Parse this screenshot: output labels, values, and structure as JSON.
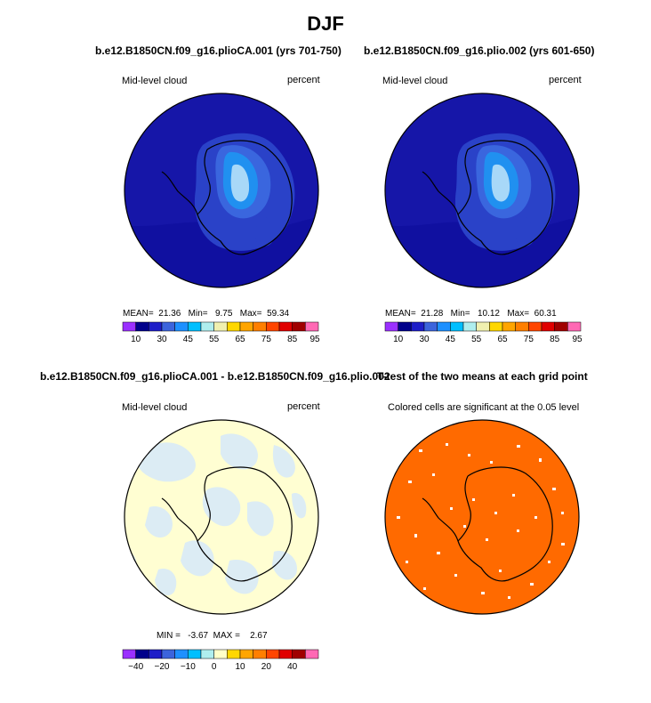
{
  "page_title": "DJF",
  "panels": [
    {
      "title": "b.e12.B1850CN.f09_g16.plioCA.001 (yrs 701-750)",
      "left_label": "Mid-level cloud",
      "right_label": "percent",
      "stats": {
        "mean_label": "MEAN=",
        "mean": "21.36",
        "min_label": "Min=",
        "min": "9.75",
        "max_label": "Max=",
        "max": "59.34"
      }
    },
    {
      "title": "b.e12.B1850CN.f09_g16.plio.002 (yrs 601-650)",
      "left_label": "Mid-level cloud",
      "right_label": "percent",
      "stats": {
        "mean_label": "MEAN=",
        "mean": "21.28",
        "min_label": "Min=",
        "min": "10.12",
        "max_label": "Max=",
        "max": "60.31"
      }
    },
    {
      "title": "b.e12.B1850CN.f09_g16.plioCA.001 - b.e12.B1850CN.f09_g16.plio.002",
      "left_label": "Mid-level cloud",
      "right_label": "percent",
      "stats": {
        "min_label": "MIN =",
        "min": "-3.67",
        "max_label": "MAX =",
        "max": "2.67"
      }
    },
    {
      "title": "T-test of the two means at each grid point",
      "subtitle": "Colored cells are significant at the 0.05 level"
    }
  ],
  "colorbars": {
    "abs": {
      "colors": [
        "#9b30ff",
        "#00008b",
        "#1e1ec8",
        "#3c64dc",
        "#1e90ff",
        "#00bfff",
        "#afeeee",
        "#f0f0b0",
        "#ffd700",
        "#ffa500",
        "#ff7f00",
        "#ff4500",
        "#e00000",
        "#a00000",
        "#ff69b4"
      ],
      "ticks": [
        "10",
        "30",
        "45",
        "55",
        "65",
        "75",
        "85",
        "95"
      ]
    },
    "diff": {
      "colors": [
        "#9b30ff",
        "#00008b",
        "#1e1ec8",
        "#3c64dc",
        "#1e90ff",
        "#00bfff",
        "#afeeee",
        "#ffffc8",
        "#ffd700",
        "#ffa500",
        "#ff7f00",
        "#ff4500",
        "#e00000",
        "#a00000",
        "#ff69b4"
      ],
      "ticks": [
        "−40",
        "−20",
        "−10",
        "0",
        "10",
        "20",
        "40"
      ]
    }
  },
  "chart_data": [
    {
      "type": "heatmap",
      "title": "b.e12.B1850CN.f09_g16.plioCA.001 (yrs 701-750)",
      "variable": "Mid-level cloud",
      "units": "percent",
      "mean": 21.36,
      "min": 9.75,
      "max": 59.34,
      "levels": [
        10,
        30,
        45,
        55,
        65,
        75,
        85,
        95
      ]
    },
    {
      "type": "heatmap",
      "title": "b.e12.B1850CN.f09_g16.plio.002 (yrs 601-650)",
      "variable": "Mid-level cloud",
      "units": "percent",
      "mean": 21.28,
      "min": 10.12,
      "max": 60.31,
      "levels": [
        10,
        30,
        45,
        55,
        65,
        75,
        85,
        95
      ]
    },
    {
      "type": "heatmap",
      "title": "b.e12.B1850CN.f09_g16.plioCA.001 - b.e12.B1850CN.f09_g16.plio.002",
      "variable": "Mid-level cloud",
      "units": "percent",
      "min": -3.67,
      "max": 2.67,
      "levels": [
        -40,
        -20,
        -10,
        0,
        10,
        20,
        40
      ]
    },
    {
      "type": "heatmap",
      "title": "T-test of the two means at each grid point",
      "note": "Colored cells are significant at the 0.05 level",
      "significance_level": 0.05
    }
  ],
  "colors": {
    "ocean_deep": "#1a1ab8",
    "land_mid": "#3a66de",
    "land_high": "#2090f0",
    "land_core": "#a8d8f8",
    "diff_bg": "#fffed2",
    "diff_neg": "#dcecf4",
    "ttest_bg": "#ff6a00"
  }
}
